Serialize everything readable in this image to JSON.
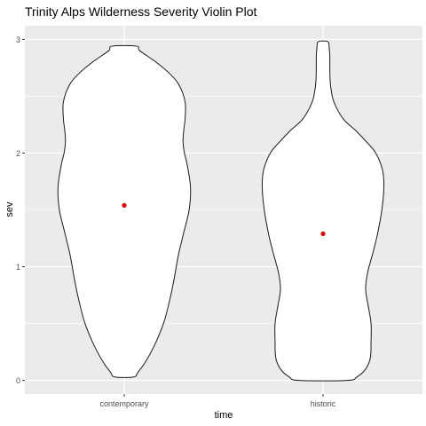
{
  "chart_data": {
    "type": "violin",
    "title": "Trinity Alps Wilderness Severity Violin Plot",
    "xlabel": "time",
    "ylabel": "sev",
    "categories": [
      "contemporary",
      "historic"
    ],
    "y_ticks": [
      0,
      1,
      2,
      3
    ],
    "ylim": [
      -0.12,
      3.12
    ],
    "grid": true,
    "colors": {
      "panel_background": "#ebebeb",
      "grid": "#ffffff",
      "violin_fill": "#ffffff",
      "violin_outline": "#1a1a1a",
      "mean_point": "#e00000",
      "text": "#000000",
      "axis_text": "#4d4d4d"
    },
    "series": [
      {
        "category": "contemporary",
        "y_range": [
          0.03,
          2.94
        ],
        "mean": 1.54,
        "density_profile": [
          [
            0.03,
            0.14
          ],
          [
            0.07,
            0.2
          ],
          [
            0.15,
            0.3
          ],
          [
            0.3,
            0.44
          ],
          [
            0.5,
            0.58
          ],
          [
            0.7,
            0.67
          ],
          [
            0.9,
            0.74
          ],
          [
            1.1,
            0.8
          ],
          [
            1.3,
            0.88
          ],
          [
            1.5,
            0.96
          ],
          [
            1.7,
            0.98
          ],
          [
            1.9,
            0.93
          ],
          [
            2.0,
            0.89
          ],
          [
            2.1,
            0.87
          ],
          [
            2.2,
            0.88
          ],
          [
            2.3,
            0.9
          ],
          [
            2.45,
            0.9
          ],
          [
            2.6,
            0.81
          ],
          [
            2.7,
            0.67
          ],
          [
            2.8,
            0.47
          ],
          [
            2.9,
            0.23
          ],
          [
            2.94,
            0.18
          ]
        ]
      },
      {
        "category": "historic",
        "y_range": [
          0.0,
          2.98
        ],
        "mean": 1.29,
        "density_profile": [
          [
            0.0,
            0.36
          ],
          [
            0.03,
            0.5
          ],
          [
            0.1,
            0.63
          ],
          [
            0.2,
            0.7
          ],
          [
            0.35,
            0.71
          ],
          [
            0.5,
            0.71
          ],
          [
            0.65,
            0.67
          ],
          [
            0.8,
            0.63
          ],
          [
            0.95,
            0.66
          ],
          [
            1.15,
            0.75
          ],
          [
            1.3,
            0.81
          ],
          [
            1.5,
            0.87
          ],
          [
            1.7,
            0.9
          ],
          [
            1.85,
            0.88
          ],
          [
            2.0,
            0.78
          ],
          [
            2.1,
            0.64
          ],
          [
            2.2,
            0.48
          ],
          [
            2.3,
            0.3
          ],
          [
            2.45,
            0.16
          ],
          [
            2.6,
            0.11
          ],
          [
            2.75,
            0.1
          ],
          [
            2.85,
            0.1
          ],
          [
            2.93,
            0.09
          ],
          [
            2.98,
            0.07
          ]
        ]
      }
    ]
  }
}
